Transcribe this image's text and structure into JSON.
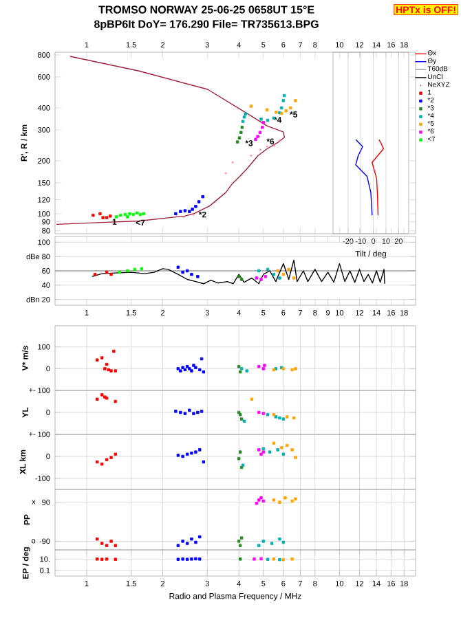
{
  "chart_data": [
    {
      "type": "scatter",
      "title": "TROMSO NORWAY 25-06-25 0658UT 15°E",
      "subtitle": "8pBP6It DoY= 176.290 File= TR735613.BPG",
      "ylabel": "R', R / km",
      "log": "xy",
      "xlim": [
        0.75,
        20
      ],
      "xticks": [
        1,
        1.5,
        2,
        3,
        4,
        5,
        6,
        7,
        8,
        10,
        12,
        14,
        16,
        18
      ],
      "ylim": [
        77,
        829
      ],
      "yticks": [
        80,
        90,
        100,
        120,
        150,
        200,
        300,
        400,
        600,
        800
      ],
      "legend": "right",
      "marker": "square",
      "annotations": [
        "HPTx is OFF!",
        {
          "text": "1",
          "x": 1.25,
          "y": 90
        },
        {
          "text": "<7",
          "x": 1.55,
          "y": 89
        },
        {
          "text": "*2",
          "x": 2.75,
          "y": 99
        },
        {
          "text": "*3",
          "x": 4.2,
          "y": 252
        },
        {
          "text": "*6",
          "x": 5.1,
          "y": 258
        },
        {
          "text": "*4",
          "x": 5.45,
          "y": 342
        },
        {
          "text": "*5",
          "x": 6.3,
          "y": 367
        }
      ],
      "series": [
        {
          "type": "line",
          "marker": "none",
          "color": "#a0203a",
          "x": [
            0.86,
            1.61,
            3.01,
            4.38,
            5.17,
            5.99,
            6.06,
            5.74,
            5.17,
            4.76,
            4.29,
            4.03,
            3.78,
            3.55,
            3.07,
            2.77,
            2.65,
            2.44,
            1.61,
            1.105,
            0.76
          ],
          "values": [
            786,
            649,
            510,
            367,
            316,
            292,
            272,
            256,
            234,
            214,
            179,
            163,
            149,
            132,
            111,
            103,
            100,
            97,
            91,
            89,
            87
          ]
        },
        {
          "name": "NeXYZ",
          "type": "scatter",
          "marker": "cross",
          "color": "#ff7090",
          "x": [
            2.42,
            2.65,
            3.55,
            3.78,
            4.47,
            4.86,
            5.17,
            5.51,
            5.79
          ],
          "values": [
            96,
            99,
            170,
            196,
            214,
            231,
            241,
            244,
            261
          ]
        },
        {
          "name": "1",
          "color": "#ff0000",
          "x": [
            1.06,
            1.13,
            1.16,
            1.2,
            1.24
          ],
          "values": [
            98,
            100,
            95,
            95,
            97
          ]
        },
        {
          "name": "*2",
          "color": "#0000ff",
          "x": [
            2.25,
            2.35,
            2.45,
            2.55,
            2.62,
            2.7,
            2.78,
            2.88
          ],
          "values": [
            100,
            103,
            104,
            103,
            106,
            110,
            117,
            125
          ]
        },
        {
          "name": "*3",
          "color": "#228b22",
          "x": [
            3.95,
            4.02,
            4.08,
            4.12
          ],
          "values": [
            256,
            270,
            290,
            310
          ]
        },
        {
          "name": "*4",
          "color": "#00b0b0",
          "x": [
            4.15,
            4.2,
            4.25,
            4.9,
            5.2,
            5.5,
            5.8,
            5.9,
            6.0,
            6.05
          ],
          "values": [
            335,
            355,
            370,
            345,
            340,
            350,
            375,
            400,
            440,
            470
          ]
        },
        {
          "name": "*5",
          "color": "#ffa500",
          "x": [
            4.47,
            5.17,
            5.62,
            5.9,
            6.15,
            6.4,
            6.7
          ],
          "values": [
            409,
            390,
            378,
            372,
            385,
            400,
            440
          ]
        },
        {
          "name": "*6",
          "color": "#ff00ff",
          "x": [
            4.66,
            4.75,
            4.85,
            4.95,
            5.0
          ],
          "values": [
            265,
            275,
            290,
            310,
            330
          ]
        },
        {
          "name": "<7",
          "color": "#00ff00",
          "x": [
            1.31,
            1.36,
            1.42,
            1.45,
            1.48,
            1.53,
            1.58,
            1.63,
            1.68
          ],
          "values": [
            96,
            98,
            99,
            96,
            100,
            99,
            101,
            99,
            100
          ]
        }
      ]
    },
    {
      "type": "line",
      "xlabel": "Tilt / deg",
      "log": "y",
      "xlim": [
        -32,
        28
      ],
      "xticks": [
        -20,
        -10,
        0,
        10,
        20
      ],
      "ylim": [
        77,
        829
      ],
      "tick_labels": "x",
      "grid": "x",
      "series": [
        {
          "name": "Θx",
          "color": "#ff0000",
          "x": [
            4.4,
            6.3,
            8,
            -1,
            2.6,
            3.3,
            3.7
          ],
          "values": [
            264,
            250,
            234,
            196,
            158,
            125,
            98
          ]
        },
        {
          "name": "Θy",
          "color": "#0000ff",
          "x": [
            -14,
            -8.5,
            -12,
            -14,
            -5,
            -2,
            -1
          ],
          "values": [
            264,
            241,
            214,
            190,
            163,
            132,
            98
          ]
        }
      ]
    },
    {
      "type": "line",
      "log": "x",
      "xlim": [
        0.75,
        20
      ],
      "xticks": [
        1,
        1.5,
        2,
        3,
        4,
        5,
        6,
        7,
        8,
        9,
        10,
        12,
        14,
        16,
        18
      ],
      "ylim": [
        12,
        108
      ],
      "yticks": [
        100,
        {
          "value": 80,
          "label": "dBe 80"
        },
        60,
        40,
        {
          "value": 20,
          "label": "dBn 20"
        }
      ],
      "grid": "y",
      "marker": "square",
      "series": [
        {
          "name": "T60dB",
          "color": "#a0a0a0",
          "marker": "none",
          "x": [
            0.75,
            20
          ],
          "values": [
            60,
            60
          ]
        },
        {
          "name": "UnCl",
          "color": "#000000",
          "marker": "none",
          "x": [
            1.05,
            1.15,
            1.3,
            1.5,
            1.7,
            1.85,
            2.0,
            2.1,
            2.3,
            2.5,
            2.7,
            2.9,
            3.1,
            3.3,
            3.6,
            3.8,
            4.0,
            4.2,
            4.5,
            4.8,
            5.0,
            5.3,
            5.6,
            6.0,
            6.3,
            6.6,
            6.8,
            7.2,
            7.5,
            8.0,
            8.5,
            9.0,
            9.5,
            10.0,
            10.5,
            11,
            11.5,
            12,
            12.5,
            13,
            13.5,
            14,
            14.5,
            15,
            15.1
          ],
          "values": [
            52,
            56,
            57,
            58,
            56,
            58,
            63,
            62,
            55,
            48,
            45,
            42,
            47,
            43,
            45,
            42,
            55,
            44,
            50,
            42,
            55,
            60,
            45,
            70,
            48,
            75,
            45,
            60,
            45,
            62,
            45,
            58,
            44,
            70,
            45,
            60,
            44,
            62,
            45,
            55,
            43,
            60,
            44,
            62,
            42
          ]
        },
        {
          "type": "scatter",
          "color": "#ff0000",
          "x": [
            1.08,
            1.2,
            1.25
          ],
          "values": [
            55,
            58,
            55
          ]
        },
        {
          "type": "scatter",
          "color": "#00ff00",
          "x": [
            1.35,
            1.45,
            1.55,
            1.65
          ],
          "values": [
            58,
            60,
            62,
            63
          ]
        },
        {
          "type": "scatter",
          "color": "#0000ff",
          "x": [
            2.3,
            2.4,
            2.5,
            2.6,
            2.75
          ],
          "values": [
            65,
            58,
            60,
            55,
            52
          ]
        },
        {
          "type": "scatter",
          "color": "#228b22",
          "x": [
            4.0,
            4.1
          ],
          "values": [
            52,
            48
          ]
        },
        {
          "type": "scatter",
          "color": "#00b0b0",
          "x": [
            4.8,
            5.2,
            5.5,
            5.8
          ],
          "values": [
            60,
            62,
            55,
            50
          ]
        },
        {
          "type": "scatter",
          "color": "#ff00ff",
          "x": [
            4.7,
            4.9,
            5.1
          ],
          "values": [
            50,
            48,
            52
          ]
        },
        {
          "type": "scatter",
          "color": "#ffa500",
          "x": [
            5.7,
            6.0,
            6.3,
            6.6
          ],
          "values": [
            60,
            55,
            62,
            50
          ]
        }
      ]
    },
    {
      "type": "scatter",
      "ylabel": "V* m/s",
      "log": "x",
      "xlim": [
        0.75,
        20
      ],
      "xticks": [
        1,
        1.5,
        2,
        3,
        4,
        5,
        6,
        7,
        8,
        10,
        12,
        14,
        16,
        18
      ],
      "ylim": [
        -100,
        197
      ],
      "yticks": [
        100,
        0
      ],
      "tick_labels": "y",
      "grid": true,
      "marker": "square",
      "series": [
        {
          "color": "#ff0000",
          "x": [
            1.1,
            1.15,
            1.18,
            1.2,
            1.22,
            1.25,
            1.28,
            1.3
          ],
          "values": [
            40,
            50,
            0,
            20,
            -5,
            -10,
            80,
            -10
          ]
        },
        {
          "color": "#0000ff",
          "x": [
            2.3,
            2.35,
            2.4,
            2.45,
            2.5,
            2.55,
            2.6,
            2.65,
            2.7,
            2.8,
            2.85,
            2.9
          ],
          "values": [
            0,
            -10,
            5,
            -5,
            10,
            0,
            -10,
            15,
            5,
            -5,
            45,
            -15
          ]
        },
        {
          "color": "#228b22",
          "x": [
            4.0,
            4.05
          ],
          "values": [
            10,
            -15
          ]
        },
        {
          "color": "#00b0b0",
          "x": [
            4.1,
            4.3,
            5.6,
            5.9
          ],
          "values": [
            0,
            -10,
            0,
            5
          ]
        },
        {
          "color": "#ff00ff",
          "x": [
            4.8,
            5.0,
            5.05
          ],
          "values": [
            10,
            0,
            15
          ]
        },
        {
          "color": "#ffa500",
          "x": [
            5.5,
            6.0,
            6.5,
            6.7
          ],
          "values": [
            -5,
            0,
            -5,
            0
          ]
        }
      ]
    },
    {
      "type": "scatter",
      "ylabel": "YL",
      "log": "x",
      "xlim": [
        0.75,
        20
      ],
      "xticks": [
        1,
        1.5,
        2,
        3,
        4,
        5,
        6,
        7,
        8,
        10,
        12,
        14,
        16,
        18
      ],
      "ylim": [
        -100,
        100
      ],
      "yticks": [
        100,
        0
      ],
      "annotations": [
        "+-"
      ],
      "tick_labels": "y",
      "grid": true,
      "marker": "square",
      "series": [
        {
          "color": "#ff0000",
          "x": [
            1.1,
            1.15,
            1.18,
            1.2,
            1.3
          ],
          "values": [
            60,
            80,
            70,
            65,
            50
          ]
        },
        {
          "color": "#0000ff",
          "x": [
            2.25,
            2.35,
            2.45,
            2.55,
            2.65,
            2.75,
            2.85
          ],
          "values": [
            5,
            0,
            -5,
            10,
            -5,
            0,
            5
          ]
        },
        {
          "color": "#228b22",
          "x": [
            4.0,
            4.05,
            4.1
          ],
          "values": [
            0,
            -10,
            -30
          ]
        },
        {
          "color": "#00b0b0",
          "x": [
            4.2,
            5.2,
            5.6,
            5.8,
            6.0
          ],
          "values": [
            -40,
            -10,
            -20,
            -25,
            -30
          ]
        },
        {
          "color": "#ff00ff",
          "x": [
            4.8,
            5.0
          ],
          "values": [
            0,
            -5
          ]
        },
        {
          "color": "#ffa500",
          "x": [
            4.5,
            5.5,
            6.2,
            6.6
          ],
          "values": [
            60,
            -10,
            -20,
            -25
          ]
        }
      ]
    },
    {
      "type": "scatter",
      "ylabel": "XL km",
      "log": "x",
      "xlim": [
        0.75,
        20
      ],
      "xticks": [
        1,
        1.5,
        2,
        3,
        4,
        5,
        6,
        7,
        8,
        10,
        12,
        14,
        16,
        18
      ],
      "ylim": [
        -150,
        100
      ],
      "yticks": [
        100,
        0,
        -100
      ],
      "annotations": [
        "+-"
      ],
      "tick_labels": "y",
      "grid": true,
      "marker": "square",
      "series": [
        {
          "color": "#ff0000",
          "x": [
            1.1,
            1.15,
            1.2,
            1.25,
            1.3
          ],
          "values": [
            -25,
            -35,
            -15,
            -5,
            10
          ]
        },
        {
          "color": "#0000ff",
          "x": [
            2.3,
            2.4,
            2.5,
            2.6,
            2.7,
            2.8,
            2.9
          ],
          "values": [
            5,
            0,
            10,
            15,
            20,
            30,
            -25
          ]
        },
        {
          "color": "#228b22",
          "x": [
            4.0,
            4.05,
            4.1
          ],
          "values": [
            -10,
            20,
            -50
          ]
        },
        {
          "color": "#00b0b0",
          "x": [
            4.15,
            5.0,
            5.3,
            5.7,
            6.0
          ],
          "values": [
            -40,
            35,
            20,
            30,
            10
          ]
        },
        {
          "color": "#ff00ff",
          "x": [
            4.8,
            4.9,
            5.0
          ],
          "values": [
            30,
            10,
            20
          ]
        },
        {
          "color": "#ffa500",
          "x": [
            5.5,
            5.9,
            6.2,
            6.5,
            6.7
          ],
          "values": [
            60,
            40,
            50,
            30,
            -5
          ]
        }
      ]
    },
    {
      "type": "scatter",
      "ylabel": "PP",
      "log": "x",
      "xlim": [
        0.75,
        20
      ],
      "xticks": [
        1,
        1.5,
        2,
        3,
        4,
        5,
        6,
        7,
        8,
        10,
        12,
        14,
        16,
        18
      ],
      "ylim": [
        -130,
        149
      ],
      "yticks": [
        90,
        -90
      ],
      "annotations": [
        "x",
        "o"
      ],
      "tick_labels": "y",
      "grid": true,
      "marker": "square",
      "series": [
        {
          "color": "#ff0000",
          "x": [
            1.1,
            1.15,
            1.2,
            1.25,
            1.3
          ],
          "values": [
            -80,
            -100,
            -110,
            -90,
            -110
          ]
        },
        {
          "color": "#0000ff",
          "x": [
            2.3,
            2.4,
            2.5,
            2.6,
            2.7,
            2.8
          ],
          "values": [
            -110,
            -90,
            -100,
            -80,
            -95,
            -70
          ]
        },
        {
          "color": "#228b22",
          "x": [
            4.0,
            4.05,
            4.1
          ],
          "values": [
            -90,
            -110,
            -75
          ]
        },
        {
          "color": "#00b0b0",
          "x": [
            4.8,
            5.0,
            5.4,
            5.8,
            6.0
          ],
          "values": [
            -110,
            -90,
            -100,
            -80,
            -95
          ]
        },
        {
          "color": "#ff00ff",
          "x": [
            4.7,
            4.8,
            4.9,
            5.0
          ],
          "values": [
            85,
            100,
            110,
            95
          ]
        },
        {
          "color": "#ffa500",
          "x": [
            5.5,
            5.8,
            6.1,
            6.5,
            6.7
          ],
          "values": [
            100,
            90,
            110,
            95,
            105
          ]
        }
      ]
    },
    {
      "type": "scatter",
      "ylabel": "EP / deg",
      "xlabel": "Radio and Plasma Frequency / MHz",
      "log": "xy",
      "xlim": [
        0.75,
        20
      ],
      "xticks": [
        1,
        1.5,
        2,
        3,
        4,
        5,
        6,
        7,
        8,
        10,
        12,
        14,
        16,
        18
      ],
      "ylim": [
        0.011,
        400
      ],
      "yticks": [
        {
          "value": 10,
          "label": "10."
        },
        0.1
      ],
      "grid": true,
      "marker": "square",
      "series": [
        {
          "color": "#ff0000",
          "x": [
            1.1,
            1.15,
            1.2,
            1.3
          ],
          "values": [
            10,
            9,
            10,
            9
          ]
        },
        {
          "color": "#0000ff",
          "x": [
            2.3,
            2.4,
            2.5,
            2.6,
            2.7,
            2.8
          ],
          "values": [
            9,
            10,
            9,
            10,
            11,
            10
          ]
        },
        {
          "color": "#228b22",
          "x": [
            4.05
          ],
          "values": [
            10
          ]
        },
        {
          "color": "#00b0b0",
          "x": [
            5.2,
            5.8
          ],
          "values": [
            9,
            8
          ]
        },
        {
          "color": "#ff00ff",
          "x": [
            4.6,
            4.9
          ],
          "values": [
            10,
            11
          ]
        },
        {
          "color": "#ffa500",
          "x": [
            5.5,
            6.0,
            6.5
          ],
          "values": [
            10,
            8,
            10
          ]
        }
      ]
    }
  ]
}
